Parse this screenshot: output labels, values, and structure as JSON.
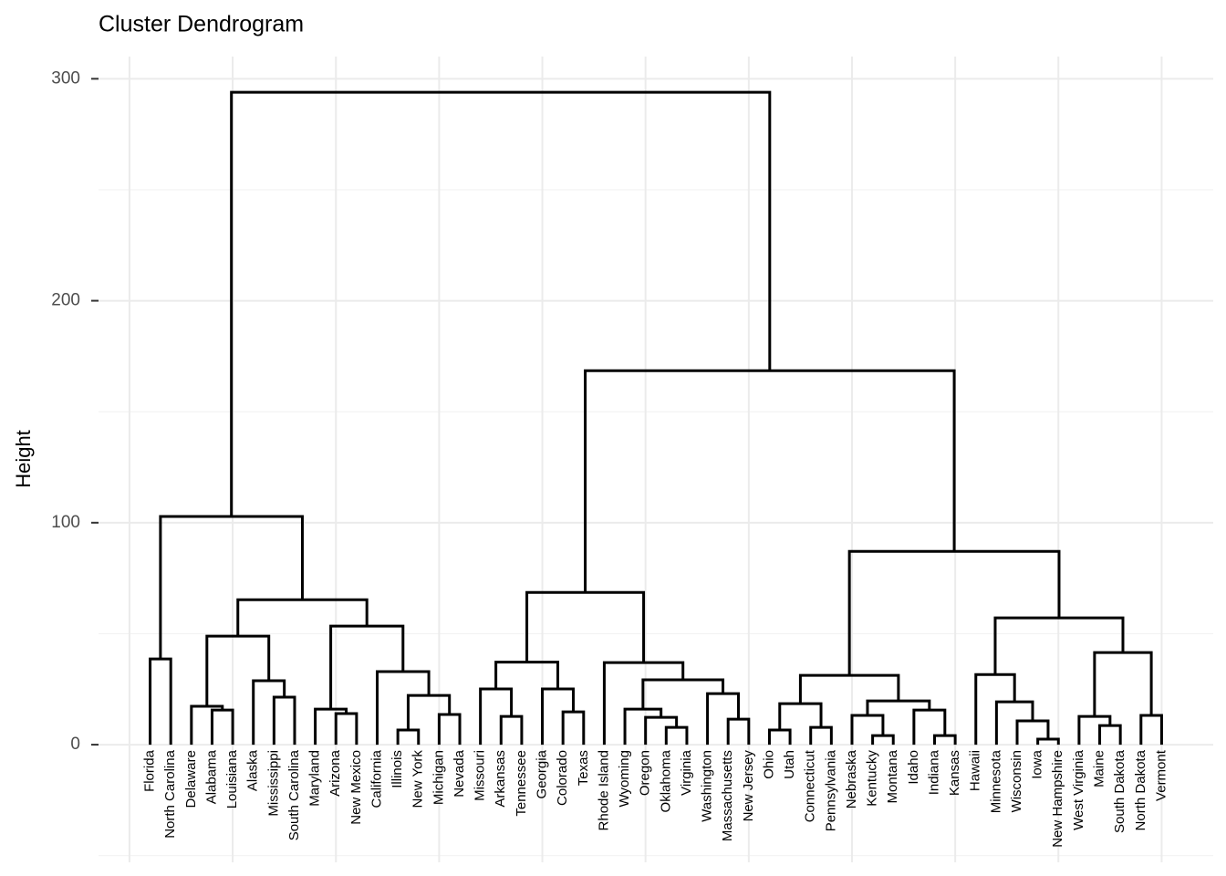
{
  "chart_data": {
    "type": "dendrogram",
    "title": "Cluster Dendrogram",
    "y_label": "Height",
    "ylim": [
      -53,
      310
    ],
    "yticks": [
      0,
      100,
      200,
      300
    ],
    "minor_ygrid": [
      -50,
      50,
      150,
      250
    ],
    "xlim": [
      -1.5,
      52.5
    ],
    "xgrid": [
      0,
      5,
      10,
      15,
      20,
      25,
      30,
      35,
      40,
      45,
      50
    ],
    "color": "#000000",
    "tree": {
      "height": 293.9,
      "children": [
        {
          "height": 102.8,
          "children": [
            {
              "height": 38.6,
              "children": [
                "Florida",
                "North Carolina"
              ]
            },
            {
              "height": 65.3,
              "children": [
                {
                  "height": 48.9,
                  "children": [
                    {
                      "height": 17.3,
                      "children": [
                        "Delaware",
                        {
                          "height": 15.6,
                          "children": [
                            "Alabama",
                            "Louisiana"
                          ]
                        }
                      ]
                    },
                    {
                      "height": 28.8,
                      "children": [
                        "Alaska",
                        {
                          "height": 21.4,
                          "children": [
                            "Mississippi",
                            "South Carolina"
                          ]
                        }
                      ]
                    }
                  ]
                },
                {
                  "height": 53.4,
                  "children": [
                    {
                      "height": 16.0,
                      "children": [
                        "Maryland",
                        {
                          "height": 14.0,
                          "children": [
                            "Arizona",
                            "New Mexico"
                          ]
                        }
                      ]
                    },
                    {
                      "height": 32.9,
                      "children": [
                        "California",
                        {
                          "height": 22.2,
                          "children": [
                            {
                              "height": 6.6,
                              "children": [
                                "Illinois",
                                "New York"
                              ]
                            },
                            {
                              "height": 13.6,
                              "children": [
                                "Michigan",
                                "Nevada"
                              ]
                            }
                          ]
                        }
                      ]
                    }
                  ]
                }
              ]
            }
          ]
        },
        {
          "height": 168.5,
          "children": [
            {
              "height": 68.6,
              "children": [
                {
                  "height": 37.2,
                  "children": [
                    {
                      "height": 25.1,
                      "children": [
                        "Missouri",
                        {
                          "height": 12.7,
                          "children": [
                            "Arkansas",
                            "Tennessee"
                          ]
                        }
                      ]
                    },
                    {
                      "height": 25.1,
                      "children": [
                        "Georgia",
                        {
                          "height": 14.8,
                          "children": [
                            "Colorado",
                            "Texas"
                          ]
                        }
                      ]
                    }
                  ]
                },
                {
                  "height": 37.0,
                  "children": [
                    "Rhode Island",
                    {
                      "height": 29.2,
                      "children": [
                        {
                          "height": 16.0,
                          "children": [
                            "Wyoming",
                            {
                              "height": 12.3,
                              "children": [
                                "Oregon",
                                {
                                  "height": 7.8,
                                  "children": [
                                    "Oklahoma",
                                    "Virginia"
                                  ]
                                }
                              ]
                            }
                          ]
                        },
                        {
                          "height": 23.0,
                          "children": [
                            "Washington",
                            {
                              "height": 11.5,
                              "children": [
                                "Massachusetts",
                                "New Jersey"
                              ]
                            }
                          ]
                        }
                      ]
                    }
                  ]
                }
              ]
            },
            {
              "height": 87.1,
              "children": [
                {
                  "height": 31.2,
                  "children": [
                    {
                      "height": 18.5,
                      "children": [
                        {
                          "height": 6.6,
                          "children": [
                            "Ohio",
                            "Utah"
                          ]
                        },
                        {
                          "height": 7.8,
                          "children": [
                            "Connecticut",
                            "Pennsylvania"
                          ]
                        }
                      ]
                    },
                    {
                      "height": 19.7,
                      "children": [
                        {
                          "height": 13.2,
                          "children": [
                            "Nebraska",
                            {
                              "height": 4.1,
                              "children": [
                                "Kentucky",
                                "Montana"
                              ]
                            }
                          ]
                        },
                        {
                          "height": 15.6,
                          "children": [
                            "Idaho",
                            {
                              "height": 4.1,
                              "children": [
                                "Indiana",
                                "Kansas"
                              ]
                            }
                          ]
                        }
                      ]
                    }
                  ]
                },
                {
                  "height": 57.1,
                  "children": [
                    {
                      "height": 31.6,
                      "children": [
                        "Hawaii",
                        {
                          "height": 19.3,
                          "children": [
                            "Minnesota",
                            {
                              "height": 10.7,
                              "children": [
                                "Wisconsin",
                                {
                                  "height": 2.5,
                                  "children": [
                                    "Iowa",
                                    "New Hampshire"
                                  ]
                                }
                              ]
                            }
                          ]
                        }
                      ]
                    },
                    {
                      "height": 41.5,
                      "children": [
                        {
                          "height": 12.7,
                          "children": [
                            "West Virginia",
                            {
                              "height": 8.6,
                              "children": [
                                "Maine",
                                "South Dakota"
                              ]
                            }
                          ]
                        },
                        {
                          "height": 13.2,
                          "children": [
                            "North Dakota",
                            "Vermont"
                          ]
                        }
                      ]
                    }
                  ]
                }
              ]
            }
          ]
        }
      ]
    }
  }
}
